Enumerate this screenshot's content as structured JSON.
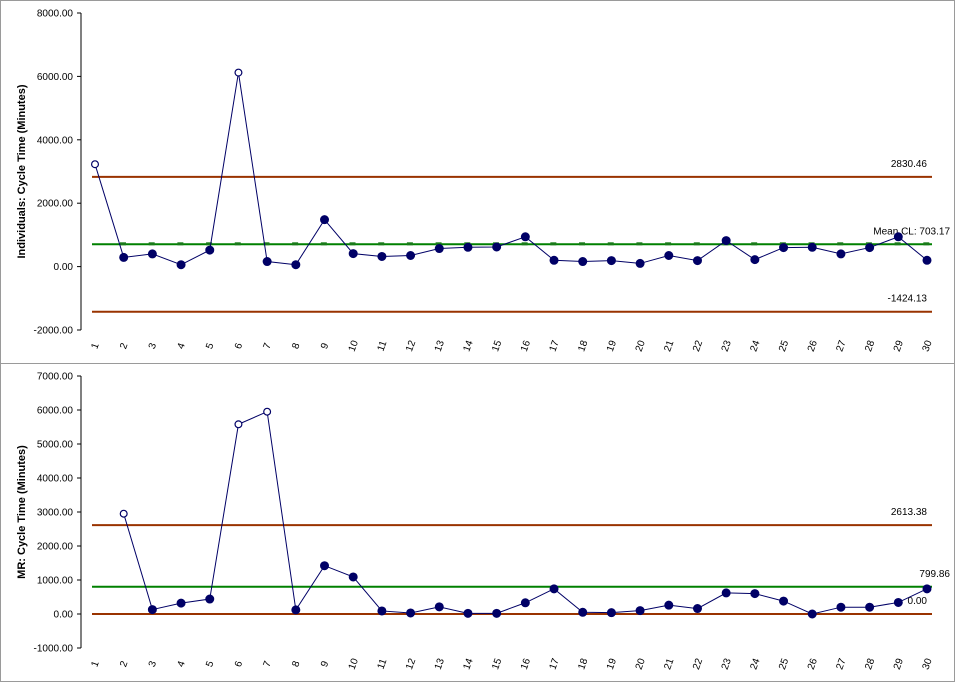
{
  "chart_data": [
    {
      "type": "line",
      "subtype": "individuals-control-chart",
      "ylabel": "Individuals: Cycle Time (Minutes)",
      "ylim": [
        -2000,
        8000
      ],
      "yticks": [
        "8000.00",
        "6000.00",
        "4000.00",
        "2000.00",
        "0.00",
        "-2000.00"
      ],
      "ytick_values": [
        8000,
        6000,
        4000,
        2000,
        0,
        -2000
      ],
      "x": [
        1,
        2,
        3,
        4,
        5,
        6,
        7,
        8,
        9,
        10,
        11,
        12,
        13,
        14,
        15,
        16,
        17,
        18,
        19,
        20,
        21,
        22,
        23,
        24,
        25,
        26,
        27,
        28,
        29,
        30
      ],
      "xticks": [
        "1",
        "2",
        "3",
        "4",
        "5",
        "6",
        "7",
        "8",
        "9",
        "10",
        "11",
        "12",
        "13",
        "14",
        "15",
        "16",
        "17",
        "18",
        "19",
        "20",
        "21",
        "22",
        "23",
        "24",
        "25",
        "26",
        "27",
        "28",
        "29",
        "30"
      ],
      "values": [
        3230,
        290,
        400,
        60,
        520,
        6120,
        160,
        60,
        1480,
        410,
        320,
        350,
        570,
        610,
        620,
        940,
        200,
        160,
        190,
        100,
        350,
        190,
        820,
        220,
        600,
        610,
        400,
        600,
        940,
        200
      ],
      "out_of_control": [
        1,
        6
      ],
      "limits": {
        "ucl": 2830.46,
        "ucl_label": "2830.46",
        "cl": 703.17,
        "cl_label": "Mean CL: 703.17",
        "lcl": -1424.13,
        "lcl_label": "-1424.13"
      }
    },
    {
      "type": "line",
      "subtype": "moving-range-chart",
      "ylabel": "MR: Cycle Time (Minutes)",
      "ylim": [
        -1000,
        7000
      ],
      "yticks": [
        "7000.00",
        "6000.00",
        "5000.00",
        "4000.00",
        "3000.00",
        "2000.00",
        "1000.00",
        "0.00",
        "-1000.00"
      ],
      "ytick_values": [
        7000,
        6000,
        5000,
        4000,
        3000,
        2000,
        1000,
        0,
        -1000
      ],
      "x": [
        2,
        3,
        4,
        5,
        6,
        7,
        8,
        9,
        10,
        11,
        12,
        13,
        14,
        15,
        16,
        17,
        18,
        19,
        20,
        21,
        22,
        23,
        24,
        25,
        26,
        27,
        28,
        29,
        30
      ],
      "xticks": [
        "1",
        "2",
        "3",
        "4",
        "5",
        "6",
        "7",
        "8",
        "9",
        "10",
        "11",
        "12",
        "13",
        "14",
        "15",
        "16",
        "17",
        "18",
        "19",
        "20",
        "21",
        "22",
        "23",
        "24",
        "25",
        "26",
        "27",
        "28",
        "29",
        "30"
      ],
      "values": [
        2950,
        130,
        320,
        440,
        5580,
        5950,
        120,
        1420,
        1090,
        90,
        30,
        210,
        20,
        20,
        330,
        740,
        50,
        40,
        100,
        260,
        160,
        620,
        600,
        380,
        0,
        200,
        200,
        340,
        740
      ],
      "out_of_control": [
        2,
        6,
        7
      ],
      "limits": {
        "ucl": 2613.38,
        "ucl_label": "2613.38",
        "cl": 799.86,
        "cl_label": "799.86",
        "lcl": 0,
        "lcl_label": "0.00"
      }
    }
  ],
  "colors": {
    "series": "#000066",
    "limit": "#993300",
    "center": "#008000",
    "axis": "#000000"
  }
}
